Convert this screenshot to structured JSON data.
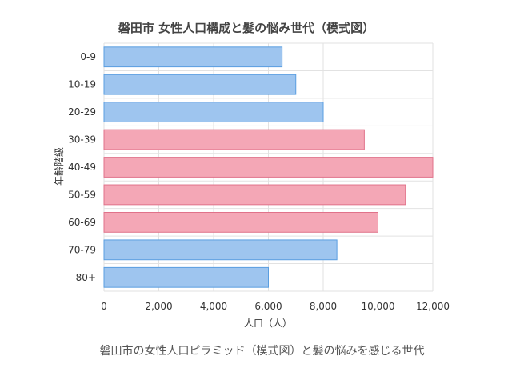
{
  "chart_data": {
    "type": "bar",
    "orientation": "horizontal",
    "title": "磐田市 女性人口構成と髪の悩み世代（模式図）",
    "xlabel": "人口（人）",
    "ylabel": "年齢階級",
    "categories": [
      "0-9",
      "10-19",
      "20-29",
      "30-39",
      "40-49",
      "50-59",
      "60-69",
      "70-79",
      "80+"
    ],
    "values": [
      6500,
      7000,
      8000,
      9500,
      12000,
      11000,
      10000,
      8500,
      6000
    ],
    "highlighted": [
      false,
      false,
      false,
      true,
      true,
      true,
      true,
      false,
      false
    ],
    "xlim": [
      0,
      12000
    ],
    "xticks": [
      0,
      2000,
      4000,
      6000,
      8000,
      10000,
      12000
    ],
    "xtick_labels": [
      "0",
      "2,000",
      "4,000",
      "6,000",
      "8,000",
      "10,000",
      "12,000"
    ],
    "grid": true,
    "legend": "none",
    "colors": {
      "normal_fill": "#9ec5ef",
      "normal_stroke": "#5a9ee0",
      "highlight_fill": "#f4a7b6",
      "highlight_stroke": "#e0728a",
      "grid": "#e2e2e2",
      "axis_text": "#333333",
      "title_text": "#444444"
    }
  },
  "caption": "磐田市の女性人口ピラミッド（模式図）と髪の悩みを感じる世代"
}
